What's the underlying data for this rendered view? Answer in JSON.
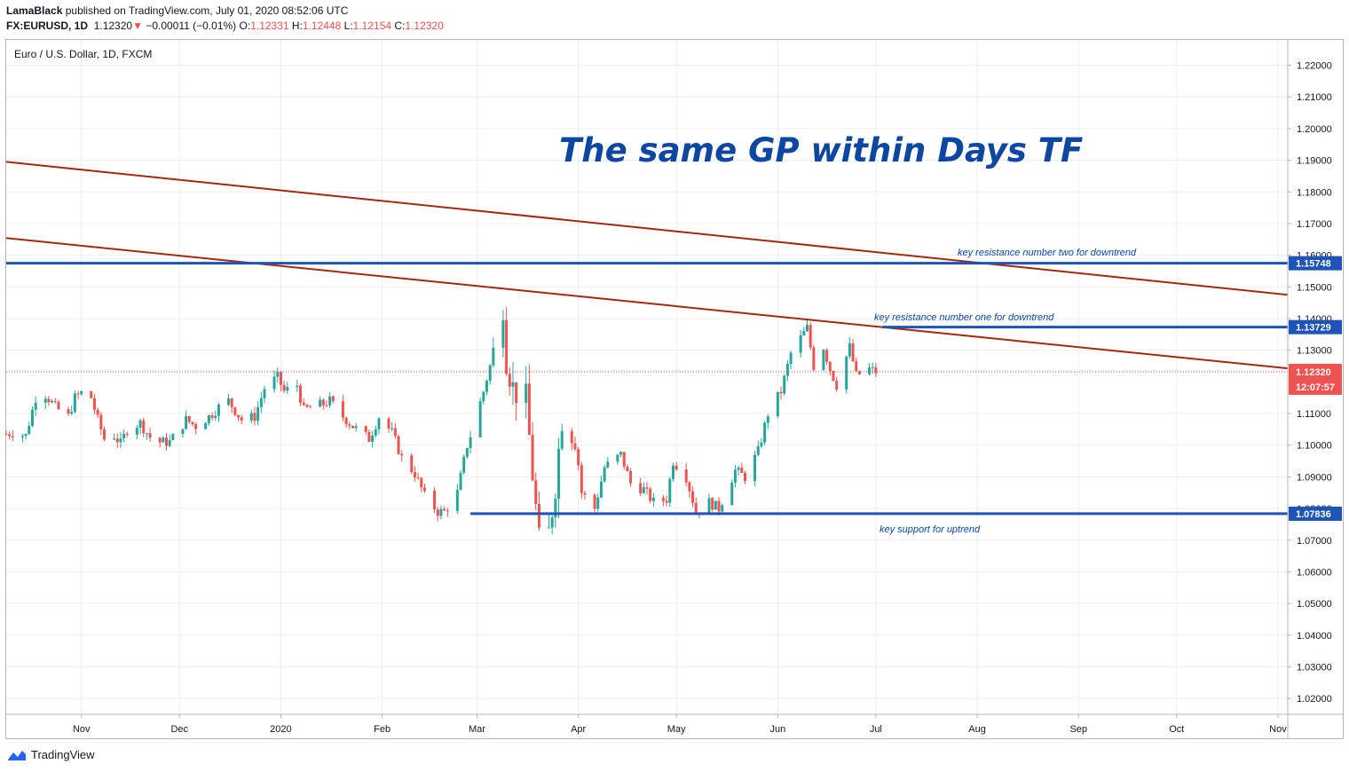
{
  "header": {
    "author": "LamaBlack",
    "published": "published on TradingView.com, July 01, 2020 08:52:06 UTC",
    "symbol": "FX:EURUSD, 1D",
    "last": "1.12320",
    "change": "−0.00011 (−0.01%)",
    "open_label": "O:",
    "open": "1.12331",
    "high_label": "H:",
    "high": "1.12448",
    "low_label": "L:",
    "low": "1.12154",
    "close_label": "C:",
    "close": "1.12320"
  },
  "chart_title": "Euro / U.S. Dollar, 1D, FXCM",
  "footer": {
    "brand": "TradingView"
  },
  "colors": {
    "up": "#26a69a",
    "down": "#ef5350",
    "level": "#1e53b8",
    "trend": "#a5280f",
    "annot": "#0d47a1"
  },
  "chart_data": {
    "type": "candlestick",
    "title": "",
    "ylim": [
      1.015,
      1.228
    ],
    "y_ticks": [
      "1.22000",
      "1.21000",
      "1.20000",
      "1.19000",
      "1.18000",
      "1.17000",
      "1.16000",
      "1.15000",
      "1.14000",
      "1.13000",
      "1.11000",
      "1.10000",
      "1.09000",
      "1.08000",
      "1.07000",
      "1.06000",
      "1.05000",
      "1.04000",
      "1.03000",
      "1.02000"
    ],
    "x_ticks": [
      "Nov",
      "Dec",
      "2020",
      "Feb",
      "Mar",
      "Apr",
      "May",
      "Jun",
      "Jul",
      "Aug",
      "Sep",
      "Oct",
      "Nov"
    ],
    "x_tick_dates": [
      "2019-11-01",
      "2019-12-01",
      "2020-01-01",
      "2020-02-01",
      "2020-03-01",
      "2020-04-01",
      "2020-05-01",
      "2020-06-01",
      "2020-07-01",
      "2020-08-01",
      "2020-09-01",
      "2020-10-01",
      "2020-11-01"
    ],
    "xlim": [
      "2019-10-09",
      "2020-11-04"
    ],
    "series_points": [
      [
        "2019-10-09",
        1.1035
      ],
      [
        "2019-10-11",
        1.104
      ],
      [
        "2019-10-15",
        1.103
      ],
      [
        "2019-10-18",
        1.115
      ],
      [
        "2019-10-21",
        1.116
      ],
      [
        "2019-10-24",
        1.112
      ],
      [
        "2019-10-28",
        1.109
      ],
      [
        "2019-10-30",
        1.115
      ],
      [
        "2019-11-01",
        1.1165
      ],
      [
        "2019-11-04",
        1.115
      ],
      [
        "2019-11-06",
        1.108
      ],
      [
        "2019-11-08",
        1.102
      ],
      [
        "2019-11-11",
        1.103
      ],
      [
        "2019-11-13",
        1.1005
      ],
      [
        "2019-11-15",
        1.105
      ],
      [
        "2019-11-19",
        1.107
      ],
      [
        "2019-11-22",
        1.1025
      ],
      [
        "2019-11-25",
        1.101
      ],
      [
        "2019-11-28",
        1.101
      ],
      [
        "2019-12-03",
        1.108
      ],
      [
        "2019-12-06",
        1.106
      ],
      [
        "2019-12-10",
        1.109
      ],
      [
        "2019-12-13",
        1.112
      ],
      [
        "2019-12-16",
        1.114
      ],
      [
        "2019-12-18",
        1.111
      ],
      [
        "2019-12-20",
        1.108
      ],
      [
        "2019-12-24",
        1.109
      ],
      [
        "2019-12-27",
        1.118
      ],
      [
        "2019-12-31",
        1.1215
      ],
      [
        "2020-01-02",
        1.117
      ],
      [
        "2020-01-06",
        1.119
      ],
      [
        "2020-01-08",
        1.111
      ],
      [
        "2020-01-10",
        1.112
      ],
      [
        "2020-01-14",
        1.113
      ],
      [
        "2020-01-16",
        1.114
      ],
      [
        "2020-01-20",
        1.109
      ],
      [
        "2020-01-23",
        1.106
      ],
      [
        "2020-01-28",
        1.102
      ],
      [
        "2020-01-31",
        1.109
      ],
      [
        "2020-02-04",
        1.104
      ],
      [
        "2020-02-07",
        1.096
      ],
      [
        "2020-02-11",
        1.091
      ],
      [
        "2020-02-14",
        1.084
      ],
      [
        "2020-02-18",
        1.079
      ],
      [
        "2020-02-20",
        1.079
      ],
      [
        "2020-02-24",
        1.085
      ],
      [
        "2020-02-27",
        1.1
      ],
      [
        "2020-02-28",
        1.103
      ],
      [
        "2020-03-03",
        1.117
      ],
      [
        "2020-03-06",
        1.129
      ],
      [
        "2020-03-09",
        1.145
      ],
      [
        "2020-03-10",
        1.128
      ],
      [
        "2020-03-12",
        1.118
      ],
      [
        "2020-03-16",
        1.114
      ],
      [
        "2020-03-18",
        1.091
      ],
      [
        "2020-03-20",
        1.069
      ],
      [
        "2020-03-23",
        1.072
      ],
      [
        "2020-03-25",
        1.088
      ],
      [
        "2020-03-27",
        1.109
      ],
      [
        "2020-03-31",
        1.103
      ],
      [
        "2020-04-02",
        1.085
      ],
      [
        "2020-04-06",
        1.08
      ],
      [
        "2020-04-09",
        1.093
      ],
      [
        "2020-04-14",
        1.097
      ],
      [
        "2020-04-17",
        1.088
      ],
      [
        "2020-04-21",
        1.086
      ],
      [
        "2020-04-24",
        1.082
      ],
      [
        "2020-04-28",
        1.083
      ],
      [
        "2020-04-30",
        1.095
      ],
      [
        "2020-05-04",
        1.09
      ],
      [
        "2020-05-07",
        1.079
      ],
      [
        "2020-05-11",
        1.082
      ],
      [
        "2020-05-14",
        1.08
      ],
      [
        "2020-05-19",
        1.092
      ],
      [
        "2020-05-22",
        1.09
      ],
      [
        "2020-05-26",
        1.098
      ],
      [
        "2020-05-29",
        1.11
      ],
      [
        "2020-06-02",
        1.117
      ],
      [
        "2020-06-05",
        1.129
      ],
      [
        "2020-06-10",
        1.137
      ],
      [
        "2020-06-12",
        1.125
      ],
      [
        "2020-06-15",
        1.131
      ],
      [
        "2020-06-17",
        1.124
      ],
      [
        "2020-06-19",
        1.119
      ],
      [
        "2020-06-23",
        1.131
      ],
      [
        "2020-06-25",
        1.122
      ],
      [
        "2020-06-29",
        1.124
      ],
      [
        "2020-07-01",
        1.1232
      ]
    ],
    "horizontal_levels": [
      {
        "price": 1.15748,
        "label": "1.15748",
        "from": "2019-10-09"
      },
      {
        "price": 1.13729,
        "label": "1.13729",
        "from": "2020-07-03"
      },
      {
        "price": 1.07836,
        "label": "1.07836",
        "from": "2020-02-28"
      }
    ],
    "trendlines": [
      {
        "from": [
          "2019-10-09",
          1.18949
        ],
        "to": [
          "2020-11-04",
          1.14749
        ]
      },
      {
        "from": [
          "2019-10-09",
          1.16542
        ],
        "to": [
          "2020-11-04",
          1.12426
        ]
      }
    ],
    "last_price": {
      "price": 1.1232,
      "label": "1.12320",
      "countdown": "12:07:57"
    },
    "annotations": {
      "big_title": "The same GP within Days TF",
      "res2": "key resistance number two for downtrend",
      "res1": "key resistance number one for downtrend",
      "support": "key support for uptrend"
    }
  }
}
